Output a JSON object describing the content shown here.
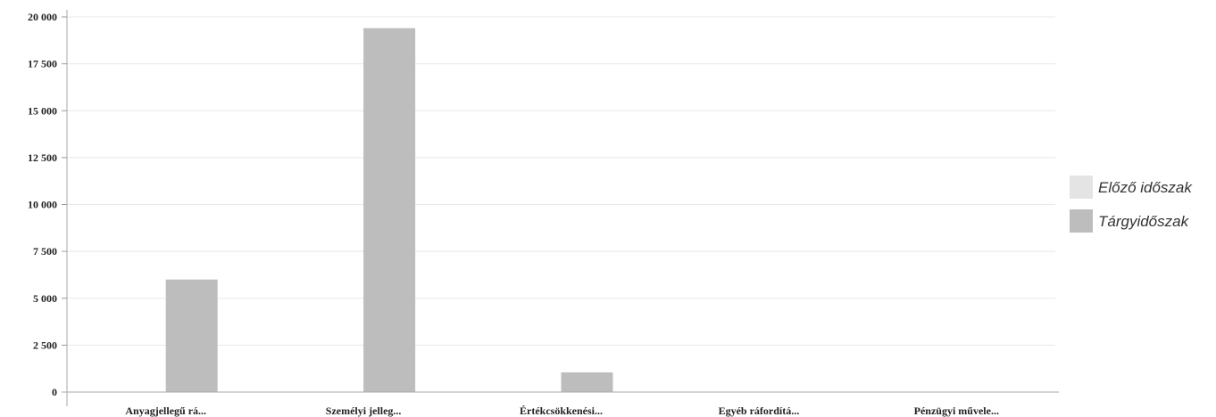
{
  "chart_data": {
    "type": "bar",
    "title": "",
    "xlabel": "",
    "ylabel": "",
    "categories": [
      "Anyagjellegű rá...",
      "Személyi jelleg...",
      "Értékcsökkenési...",
      "Egyéb ráfordítá...",
      "Pénzügyi művele..."
    ],
    "series": [
      {
        "name": "Előző időszak",
        "values": [
          0,
          0,
          0,
          0,
          0
        ],
        "color": "#e4e4e4"
      },
      {
        "name": "Tárgyidőszak",
        "values": [
          6000,
          19400,
          1050,
          0,
          0
        ],
        "color": "#bdbdbd"
      }
    ],
    "ylim": [
      0,
      20000
    ],
    "yticks": [
      0,
      2500,
      5000,
      7500,
      10000,
      12500,
      15000,
      17500,
      20000
    ],
    "ytick_labels": [
      "0",
      "2 500",
      "5 000",
      "7 500",
      "10 000",
      "12 500",
      "15 000",
      "17 500",
      "20 000"
    ],
    "grid": true,
    "legend_position": "right"
  }
}
